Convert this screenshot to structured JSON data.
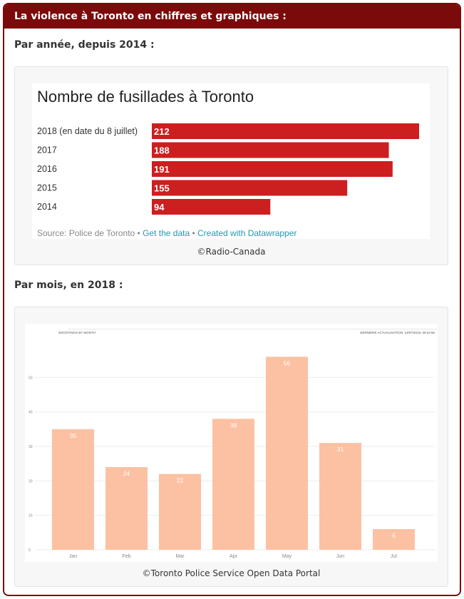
{
  "header": {
    "title": "La violence à Toronto en chiffres et graphiques :"
  },
  "section1": {
    "heading": "Par année, depuis 2014 :",
    "source_prefix": "Source: Police de Toronto",
    "separator": " • ",
    "get_data_link": "Get the data",
    "datawrapper_link": "Created with Datawrapper",
    "credit": "©Radio-Canada"
  },
  "section2": {
    "heading": "Par mois, en 2018 :",
    "credit": "©Toronto Police Service Open Data Portal"
  },
  "colors": {
    "header": "#7b0a0a",
    "bar1": "#cc1f1f",
    "bar2": "#fcc1a2"
  },
  "chart_data": [
    {
      "type": "bar",
      "orientation": "horizontal",
      "title": "Nombre de fusillades à Toronto",
      "categories": [
        "2018 (en date du 8 juillet)",
        "2017",
        "2016",
        "2015",
        "2014"
      ],
      "values": [
        212,
        188,
        191,
        155,
        94
      ],
      "xlim": [
        0,
        212
      ],
      "data_labels": true,
      "grid": false
    },
    {
      "type": "bar",
      "orientation": "vertical",
      "title": "SHOOTINGS BY MONTH",
      "timestamp": "DERNIÈRE ACTUALISATION: 13/07/2018, 09:24:56",
      "categories": [
        "Jan",
        "Feb",
        "Mar",
        "Apr",
        "May",
        "Jun",
        "Jul"
      ],
      "values": [
        35,
        24,
        22,
        38,
        56,
        31,
        6
      ],
      "yticks": [
        0,
        10,
        20,
        30,
        40,
        50
      ],
      "ylim": [
        0,
        60
      ],
      "data_labels": true,
      "grid": true
    }
  ]
}
